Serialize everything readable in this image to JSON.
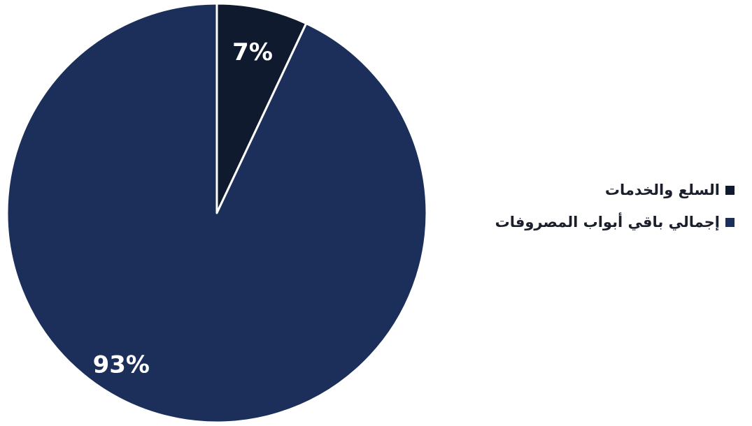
{
  "chart_data": {
    "type": "pie",
    "slices": [
      {
        "name": "السلع والخدمات",
        "value": 7,
        "label": "7%",
        "color": "#0f1a2e"
      },
      {
        "name": "إجمالي باقي  أبواب المصروفات",
        "value": 93,
        "label": "93%",
        "color": "#1b2f5a"
      }
    ],
    "start_angle_deg": 0,
    "direction": "clockwise",
    "slice_border_color": "#ffffff",
    "legend": {
      "position": "right",
      "items": [
        {
          "label": "السلع والخدمات",
          "color": "#0f1a2e"
        },
        {
          "label": "إجمالي باقي  أبواب المصروفات",
          "color": "#1b2f5a"
        }
      ]
    }
  }
}
